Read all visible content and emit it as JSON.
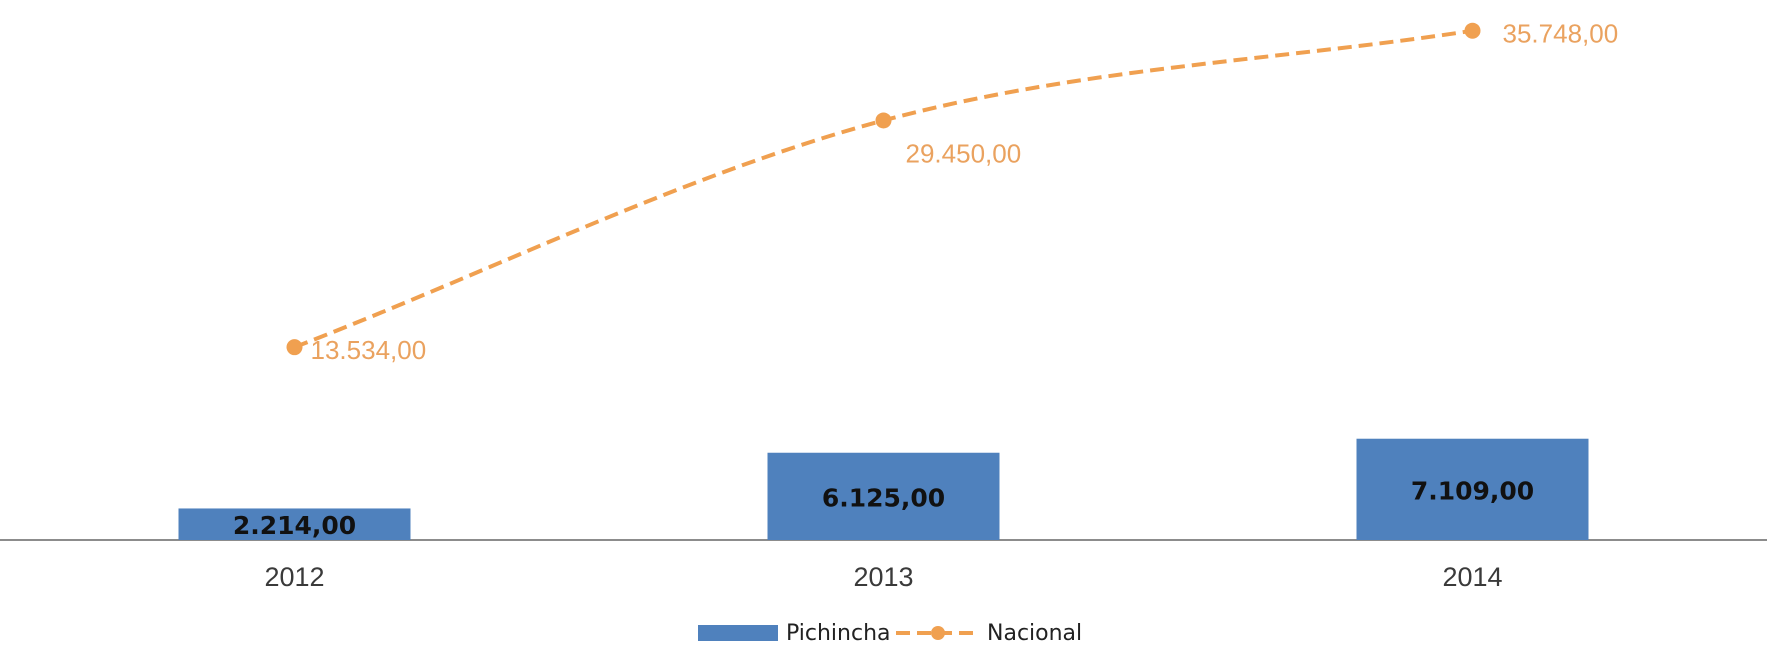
{
  "chart_data": {
    "type": "bar",
    "categories": [
      "2012",
      "2013",
      "2014"
    ],
    "series": [
      {
        "name": "Pichincha",
        "kind": "bar",
        "values": [
          2214,
          6125,
          7109
        ],
        "labels": [
          "2.214,00",
          "6.125,00",
          "7.109,00"
        ],
        "color": "#4f81bd"
      },
      {
        "name": "Nacional",
        "kind": "line",
        "style": "dashed-smooth-with-markers",
        "values": [
          13534,
          29450,
          35748
        ],
        "labels": [
          "13.534,00",
          "29.450,00",
          "35.748,00"
        ],
        "color": "#f0a050"
      }
    ],
    "ylim": [
      0,
      36500
    ],
    "grid": false,
    "legend": "bottom-center",
    "title": "",
    "xlabel": "",
    "ylabel": ""
  },
  "colors": {
    "bar": "#4f81bd",
    "line": "#f0a050",
    "line_label": "#eaa25f",
    "axis": "#8c8c8c"
  }
}
